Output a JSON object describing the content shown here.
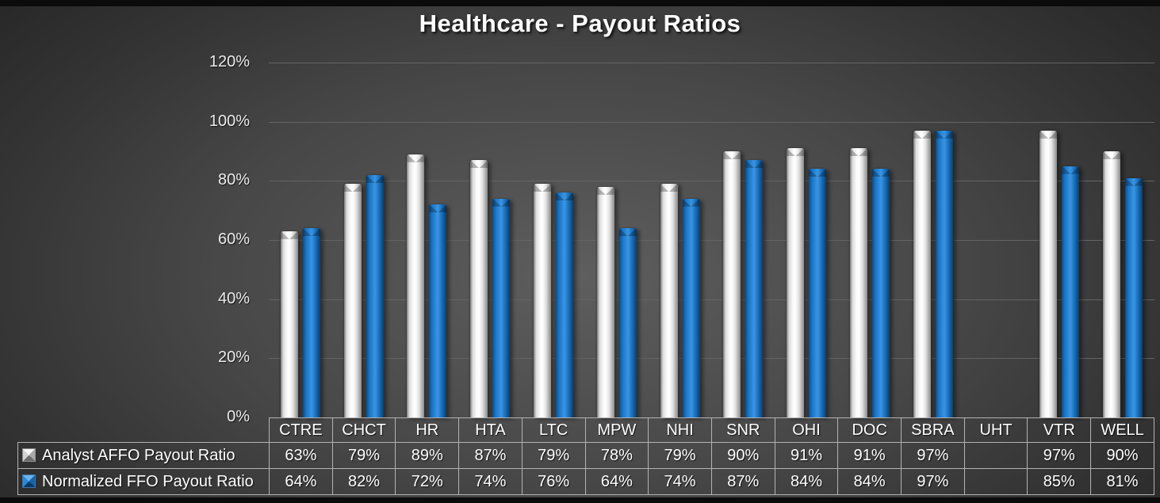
{
  "title": "Healthcare - Payout Ratios",
  "chart_data": {
    "type": "bar",
    "title": "Healthcare - Payout Ratios",
    "categories": [
      "CTRE",
      "CHCT",
      "HR",
      "HTA",
      "LTC",
      "MPW",
      "NHI",
      "SNR",
      "OHI",
      "DOC",
      "SBRA",
      "UHT",
      "VTR",
      "WELL"
    ],
    "series": [
      {
        "name": "Analyst AFFO Payout Ratio",
        "color": "#e9e9e9",
        "values": [
          63,
          79,
          89,
          87,
          79,
          78,
          79,
          90,
          91,
          91,
          97,
          null,
          97,
          90
        ]
      },
      {
        "name": "Normalized FFO Payout Ratio",
        "color": "#1d76c6",
        "values": [
          64,
          82,
          72,
          74,
          76,
          64,
          74,
          87,
          84,
          84,
          97,
          null,
          85,
          81
        ]
      }
    ],
    "value_format": "percent",
    "y_ticks": [
      0,
      20,
      40,
      60,
      80,
      100,
      120
    ],
    "y_tick_labels": [
      "0%",
      "20%",
      "40%",
      "60%",
      "80%",
      "100%",
      "120%"
    ],
    "ylim": [
      0,
      120
    ],
    "grid": true,
    "legend_position": "bottom-table"
  },
  "colors": {
    "background_center": "#5e5e5e",
    "background_edge": "#232323",
    "edge_strip": "#0b0b0b",
    "gridline": "#646464",
    "table_border": "#b3b3b3",
    "text": "#ffffff",
    "bar_affo": "#e9e9e9",
    "bar_ffo": "#1d76c6"
  }
}
